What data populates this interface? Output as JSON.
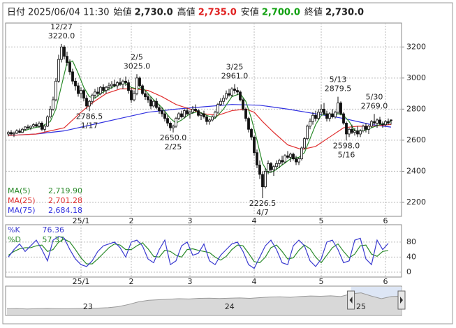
{
  "chart_data": {
    "type": "candlestick",
    "header": [
      {
        "label": "日付",
        "value": "2025/06/04 11:30",
        "color": "#222"
      },
      {
        "label": "始値",
        "value": "2,730.0",
        "color": "#222"
      },
      {
        "label": "高値",
        "value": "2,735.0",
        "color": "#e02020"
      },
      {
        "label": "安値",
        "value": "2,700.0",
        "color": "#10a010"
      },
      {
        "label": "終値",
        "value": "2,730.0",
        "color": "#222"
      }
    ],
    "ylim": [
      2110,
      3345
    ],
    "yticks": [
      2200,
      2400,
      2600,
      2800,
      3000,
      3200
    ],
    "grid": true,
    "time_labels": [
      {
        "index": 26,
        "label": "25/1"
      },
      {
        "index": 44,
        "label": "2"
      },
      {
        "index": 65,
        "label": "3"
      },
      {
        "index": 88,
        "label": "4"
      },
      {
        "index": 112,
        "label": "5"
      },
      {
        "index": 135,
        "label": "6"
      }
    ],
    "candles": [
      [
        2640,
        2660,
        2625,
        2650
      ],
      [
        2650,
        2665,
        2630,
        2640
      ],
      [
        2640,
        2655,
        2620,
        2645
      ],
      [
        2645,
        2670,
        2640,
        2660
      ],
      [
        2660,
        2675,
        2645,
        2650
      ],
      [
        2650,
        2680,
        2645,
        2670
      ],
      [
        2670,
        2690,
        2660,
        2685
      ],
      [
        2685,
        2700,
        2670,
        2680
      ],
      [
        2680,
        2695,
        2665,
        2690
      ],
      [
        2690,
        2710,
        2680,
        2700
      ],
      [
        2700,
        2715,
        2685,
        2690
      ],
      [
        2690,
        2720,
        2680,
        2710
      ],
      [
        2710,
        2720,
        2660,
        2670
      ],
      [
        2670,
        2700,
        2655,
        2690
      ],
      [
        2690,
        2760,
        2685,
        2750
      ],
      [
        2750,
        2820,
        2740,
        2800
      ],
      [
        2800,
        2880,
        2790,
        2860
      ],
      [
        2860,
        3000,
        2850,
        2980
      ],
      [
        2980,
        3150,
        2970,
        3120
      ],
      [
        3120,
        3220,
        3100,
        3200
      ],
      [
        3200,
        3210,
        3120,
        3140
      ],
      [
        3140,
        3170,
        3080,
        3100
      ],
      [
        3100,
        3120,
        3020,
        3040
      ],
      [
        3040,
        3060,
        2960,
        2980
      ],
      [
        2980,
        3000,
        2920,
        2950
      ],
      [
        2950,
        2970,
        2880,
        2900
      ],
      [
        2900,
        2940,
        2870,
        2920
      ],
      [
        2920,
        2930,
        2850,
        2870
      ],
      [
        2870,
        2890,
        2800,
        2820
      ],
      [
        2820,
        2860,
        2786.5,
        2850
      ],
      [
        2850,
        2900,
        2830,
        2890
      ],
      [
        2890,
        2930,
        2870,
        2910
      ],
      [
        2910,
        2940,
        2880,
        2900
      ],
      [
        2900,
        2950,
        2890,
        2940
      ],
      [
        2940,
        2960,
        2900,
        2920
      ],
      [
        2920,
        2950,
        2900,
        2940
      ],
      [
        2940,
        2970,
        2920,
        2950
      ],
      [
        2950,
        2980,
        2930,
        2960
      ],
      [
        2960,
        2990,
        2940,
        2950
      ],
      [
        2950,
        2980,
        2930,
        2970
      ],
      [
        2970,
        3000,
        2950,
        2960
      ],
      [
        2960,
        2990,
        2930,
        2980
      ],
      [
        2980,
        3010,
        2950,
        2970
      ],
      [
        2970,
        2990,
        2900,
        2920
      ],
      [
        2920,
        2940,
        2840,
        2860
      ],
      [
        2860,
        2920,
        2850,
        2900
      ],
      [
        2900,
        3025,
        2890,
        3000
      ],
      [
        3000,
        3010,
        2940,
        2950
      ],
      [
        2950,
        2960,
        2890,
        2900
      ],
      [
        2900,
        2920,
        2860,
        2880
      ],
      [
        2880,
        2900,
        2840,
        2860
      ],
      [
        2860,
        2880,
        2800,
        2820
      ],
      [
        2820,
        2860,
        2810,
        2850
      ],
      [
        2850,
        2870,
        2800,
        2810
      ],
      [
        2810,
        2830,
        2770,
        2790
      ],
      [
        2790,
        2810,
        2750,
        2770
      ],
      [
        2770,
        2790,
        2720,
        2740
      ],
      [
        2740,
        2760,
        2690,
        2710
      ],
      [
        2710,
        2720,
        2660,
        2680
      ],
      [
        2680,
        2700,
        2650,
        2690
      ],
      [
        2690,
        2750,
        2680,
        2740
      ],
      [
        2740,
        2780,
        2730,
        2770
      ],
      [
        2770,
        2790,
        2740,
        2750
      ],
      [
        2750,
        2800,
        2740,
        2790
      ],
      [
        2790,
        2810,
        2760,
        2770
      ],
      [
        2770,
        2790,
        2740,
        2780
      ],
      [
        2780,
        2820,
        2770,
        2800
      ],
      [
        2800,
        2830,
        2780,
        2790
      ],
      [
        2790,
        2800,
        2750,
        2760
      ],
      [
        2760,
        2780,
        2730,
        2770
      ],
      [
        2770,
        2790,
        2740,
        2750
      ],
      [
        2750,
        2760,
        2700,
        2720
      ],
      [
        2720,
        2740,
        2700,
        2730
      ],
      [
        2730,
        2760,
        2720,
        2750
      ],
      [
        2750,
        2790,
        2740,
        2780
      ],
      [
        2780,
        2840,
        2770,
        2830
      ],
      [
        2830,
        2870,
        2820,
        2850
      ],
      [
        2850,
        2890,
        2830,
        2870
      ],
      [
        2870,
        2920,
        2860,
        2900
      ],
      [
        2900,
        2930,
        2880,
        2890
      ],
      [
        2890,
        2940,
        2880,
        2930
      ],
      [
        2930,
        2961,
        2900,
        2920
      ],
      [
        2920,
        2940,
        2890,
        2910
      ],
      [
        2910,
        2920,
        2850,
        2860
      ],
      [
        2860,
        2870,
        2790,
        2800
      ],
      [
        2800,
        2810,
        2720,
        2740
      ],
      [
        2740,
        2750,
        2650,
        2670
      ],
      [
        2670,
        2680,
        2600,
        2620
      ],
      [
        2620,
        2630,
        2500,
        2520
      ],
      [
        2520,
        2540,
        2420,
        2440
      ],
      [
        2440,
        2470,
        2350,
        2380
      ],
      [
        2380,
        2400,
        2226.5,
        2300
      ],
      [
        2300,
        2420,
        2290,
        2400
      ],
      [
        2400,
        2470,
        2380,
        2450
      ],
      [
        2450,
        2460,
        2390,
        2410
      ],
      [
        2410,
        2440,
        2370,
        2430
      ],
      [
        2430,
        2470,
        2410,
        2450
      ],
      [
        2450,
        2480,
        2420,
        2470
      ],
      [
        2470,
        2500,
        2440,
        2460
      ],
      [
        2460,
        2510,
        2450,
        2500
      ],
      [
        2500,
        2530,
        2480,
        2490
      ],
      [
        2490,
        2520,
        2460,
        2510
      ],
      [
        2510,
        2520,
        2470,
        2480
      ],
      [
        2480,
        2500,
        2440,
        2460
      ],
      [
        2460,
        2490,
        2440,
        2480
      ],
      [
        2480,
        2560,
        2470,
        2550
      ],
      [
        2550,
        2620,
        2540,
        2610
      ],
      [
        2610,
        2700,
        2600,
        2690
      ],
      [
        2690,
        2740,
        2670,
        2720
      ],
      [
        2720,
        2780,
        2700,
        2760
      ],
      [
        2760,
        2790,
        2720,
        2740
      ],
      [
        2740,
        2800,
        2730,
        2780
      ],
      [
        2780,
        2830,
        2760,
        2800
      ],
      [
        2800,
        2840,
        2760,
        2770
      ],
      [
        2770,
        2790,
        2720,
        2740
      ],
      [
        2740,
        2780,
        2720,
        2770
      ],
      [
        2770,
        2800,
        2740,
        2750
      ],
      [
        2750,
        2790,
        2740,
        2780
      ],
      [
        2780,
        2879.5,
        2770,
        2840
      ],
      [
        2840,
        2850,
        2760,
        2770
      ],
      [
        2770,
        2780,
        2700,
        2710
      ],
      [
        2710,
        2720,
        2598,
        2640
      ],
      [
        2640,
        2680,
        2620,
        2670
      ],
      [
        2670,
        2700,
        2640,
        2650
      ],
      [
        2650,
        2680,
        2630,
        2660
      ],
      [
        2660,
        2690,
        2620,
        2640
      ],
      [
        2640,
        2670,
        2620,
        2660
      ],
      [
        2660,
        2700,
        2650,
        2690
      ],
      [
        2690,
        2710,
        2650,
        2670
      ],
      [
        2670,
        2700,
        2640,
        2690
      ],
      [
        2690,
        2730,
        2680,
        2720
      ],
      [
        2720,
        2769,
        2700,
        2710
      ],
      [
        2710,
        2740,
        2680,
        2730
      ],
      [
        2730,
        2750,
        2700,
        2705
      ],
      [
        2705,
        2720,
        2680,
        2700
      ],
      [
        2700,
        2730,
        2690,
        2720
      ],
      [
        2720,
        2740,
        2700,
        2710
      ],
      [
        2730,
        2735,
        2700,
        2730
      ]
    ],
    "annotations": [
      {
        "candle": 19,
        "field": 1,
        "date": "12/27",
        "label": "3220.0"
      },
      {
        "candle": 29,
        "field": 2,
        "date": "1/17",
        "label": "2786.5"
      },
      {
        "candle": 46,
        "field": 1,
        "date": "2/5",
        "label": "3025.0"
      },
      {
        "candle": 59,
        "field": 2,
        "date": "2/25",
        "label": "2650.0"
      },
      {
        "candle": 81,
        "field": 1,
        "date": "3/25",
        "label": "2961.0"
      },
      {
        "candle": 91,
        "field": 2,
        "date": "4/7",
        "label": "2226.5"
      },
      {
        "candle": 118,
        "field": 1,
        "date": "5/13",
        "label": "2879.5"
      },
      {
        "candle": 121,
        "field": 2,
        "date": "5/16",
        "label": "2598.0"
      },
      {
        "candle": 131,
        "field": 1,
        "date": "5/30",
        "label": "2769.0"
      }
    ],
    "moving_averages": [
      {
        "name": "MA(5)",
        "color": "#2a8a2a",
        "latest_label": "2,719.90",
        "x": [
          4,
          8,
          12,
          15,
          17,
          19,
          21,
          23,
          25,
          27,
          29,
          31,
          33,
          36,
          39,
          42,
          44,
          46,
          48,
          50,
          52,
          55,
          58,
          60,
          62,
          65,
          68,
          71,
          74,
          77,
          80,
          83,
          85,
          87,
          89,
          91,
          93,
          95,
          98,
          101,
          104,
          106,
          108,
          110,
          112,
          114,
          116,
          118,
          120,
          122,
          124,
          127,
          130,
          133,
          137
        ],
        "values": [
          2650,
          2675,
          2690,
          2720,
          2800,
          2950,
          3100,
          3110,
          3030,
          2940,
          2880,
          2870,
          2900,
          2930,
          2955,
          2965,
          2940,
          2930,
          2940,
          2900,
          2860,
          2810,
          2740,
          2710,
          2730,
          2770,
          2785,
          2760,
          2740,
          2800,
          2880,
          2900,
          2850,
          2740,
          2600,
          2450,
          2390,
          2400,
          2440,
          2480,
          2490,
          2520,
          2610,
          2700,
          2760,
          2770,
          2760,
          2770,
          2760,
          2720,
          2660,
          2660,
          2680,
          2700,
          2719.9
        ]
      },
      {
        "name": "MA(25)",
        "color": "#e03030",
        "latest_label": "2,701.28",
        "x": [
          0,
          10,
          20,
          26,
          30,
          35,
          40,
          45,
          50,
          55,
          60,
          65,
          70,
          75,
          80,
          85,
          88,
          91,
          95,
          100,
          105,
          110,
          115,
          120,
          125,
          130,
          137
        ],
        "values": [
          2630,
          2640,
          2680,
          2780,
          2840,
          2900,
          2930,
          2930,
          2920,
          2880,
          2830,
          2800,
          2770,
          2760,
          2790,
          2800,
          2780,
          2720,
          2650,
          2570,
          2540,
          2560,
          2620,
          2680,
          2690,
          2690,
          2701.28
        ]
      },
      {
        "name": "MA(75)",
        "color": "#3030e0",
        "latest_label": "2,684.18",
        "x": [
          0,
          10,
          20,
          30,
          40,
          50,
          60,
          70,
          80,
          90,
          100,
          110,
          120,
          130,
          137
        ],
        "values": [
          2630,
          2640,
          2660,
          2700,
          2740,
          2780,
          2800,
          2815,
          2830,
          2825,
          2800,
          2770,
          2740,
          2700,
          2684.18
        ]
      }
    ],
    "stochastic": {
      "ylim": [
        -13,
        126
      ],
      "yticks": [
        0,
        40,
        80
      ],
      "x": [
        0,
        2,
        4,
        6,
        8,
        10,
        12,
        14,
        16,
        18,
        20,
        22,
        24,
        26,
        28,
        30,
        32,
        34,
        36,
        38,
        40,
        42,
        44,
        46,
        48,
        50,
        52,
        54,
        56,
        58,
        60,
        62,
        64,
        66,
        68,
        70,
        72,
        74,
        76,
        78,
        80,
        82,
        84,
        86,
        88,
        90,
        92,
        94,
        96,
        98,
        100,
        102,
        104,
        106,
        108,
        110,
        112,
        114,
        116,
        118,
        120,
        122,
        124,
        126,
        128,
        130,
        132,
        134,
        136
      ],
      "series": [
        {
          "name": "%K",
          "color": "#3a3ad0",
          "values": [
            40,
            60,
            75,
            55,
            70,
            85,
            60,
            30,
            85,
            95,
            90,
            60,
            35,
            20,
            15,
            30,
            55,
            70,
            75,
            80,
            65,
            40,
            80,
            85,
            70,
            35,
            25,
            60,
            85,
            20,
            30,
            70,
            80,
            45,
            50,
            75,
            30,
            20,
            45,
            60,
            75,
            80,
            55,
            20,
            10,
            40,
            70,
            85,
            60,
            25,
            20,
            70,
            85,
            70,
            30,
            15,
            35,
            80,
            85,
            60,
            25,
            30,
            85,
            90,
            35,
            20,
            85,
            60,
            76.36
          ]
        },
        {
          "name": "%D",
          "color": "#2a8a2a",
          "values": [
            45,
            55,
            62,
            65,
            65,
            70,
            72,
            55,
            60,
            80,
            88,
            80,
            60,
            38,
            22,
            22,
            35,
            50,
            65,
            75,
            72,
            60,
            60,
            70,
            78,
            62,
            42,
            40,
            58,
            55,
            45,
            40,
            60,
            62,
            58,
            55,
            52,
            40,
            32,
            42,
            60,
            72,
            70,
            50,
            28,
            25,
            40,
            65,
            72,
            55,
            35,
            38,
            58,
            72,
            62,
            40,
            25,
            45,
            65,
            75,
            55,
            38,
            48,
            70,
            72,
            48,
            42,
            55,
            57.37
          ]
        }
      ]
    },
    "navigator": {
      "ylim": [
        1000,
        3500
      ],
      "values": [
        1500,
        1520,
        1480,
        1510,
        1530,
        1500,
        1490,
        1520,
        1540,
        1560,
        1600,
        1700,
        1900,
        2150,
        2300,
        2350,
        2400,
        2450,
        2420,
        2480,
        2500,
        2460,
        2500,
        2520,
        2480,
        2550,
        2600,
        2620,
        2580,
        2650,
        2700,
        2680,
        2720,
        2650,
        2900,
        3000,
        2700,
        2450,
        2650,
        2700
      ],
      "labels": [
        {
          "index": 8,
          "label": "23"
        },
        {
          "index": 22,
          "label": "24"
        },
        {
          "index": 35,
          "label": "25"
        }
      ],
      "window": [
        34,
        39
      ]
    }
  }
}
